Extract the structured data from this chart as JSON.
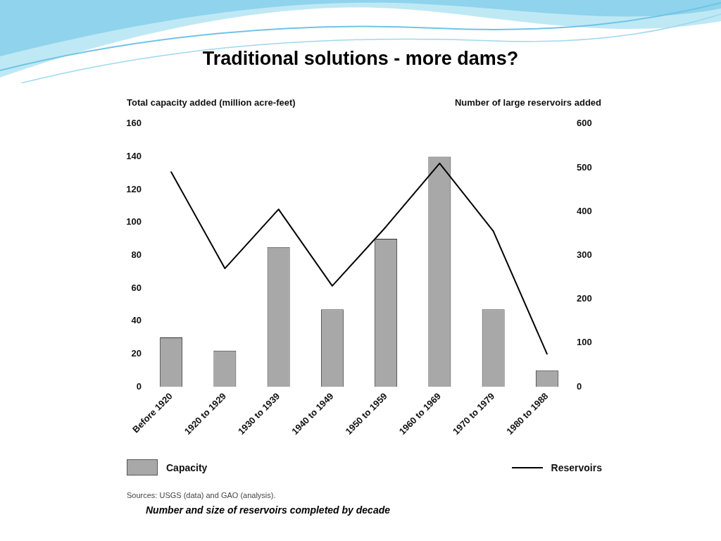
{
  "chart_data": {
    "type": "bar",
    "title": "Traditional solutions - more dams?",
    "ylabel": "Total capacity added (million acre-feet)",
    "y2label": "Number of large reservoirs added",
    "categories": [
      "Before 1920",
      "1920 to 1929",
      "1930 to 1939",
      "1940 to 1949",
      "1950 to 1959",
      "1960 to 1969",
      "1970 to 1979",
      "1980 to 1988"
    ],
    "series": [
      {
        "name": "Capacity",
        "color": "#a8a8a8",
        "values": [
          30,
          22,
          85,
          47,
          90,
          140,
          47,
          10
        ]
      },
      {
        "name": "Reservoirs",
        "type": "line",
        "axis": "y2",
        "color": "#000000",
        "values": [
          490,
          270,
          405,
          230,
          365,
          510,
          355,
          75
        ]
      }
    ],
    "ylim": [
      0,
      160
    ],
    "yticks": [
      0,
      20,
      40,
      60,
      80,
      100,
      120,
      140,
      160
    ],
    "y2lim": [
      0,
      600
    ],
    "y2ticks": [
      0,
      100,
      200,
      300,
      400,
      500,
      600
    ],
    "grid": false,
    "legend": "bottom",
    "marker": "none",
    "line_style": "solid",
    "annotations": [
      "Sources: USGS (data) and GAO (analysis).",
      "Number and size of reservoirs completed by decade"
    ]
  }
}
